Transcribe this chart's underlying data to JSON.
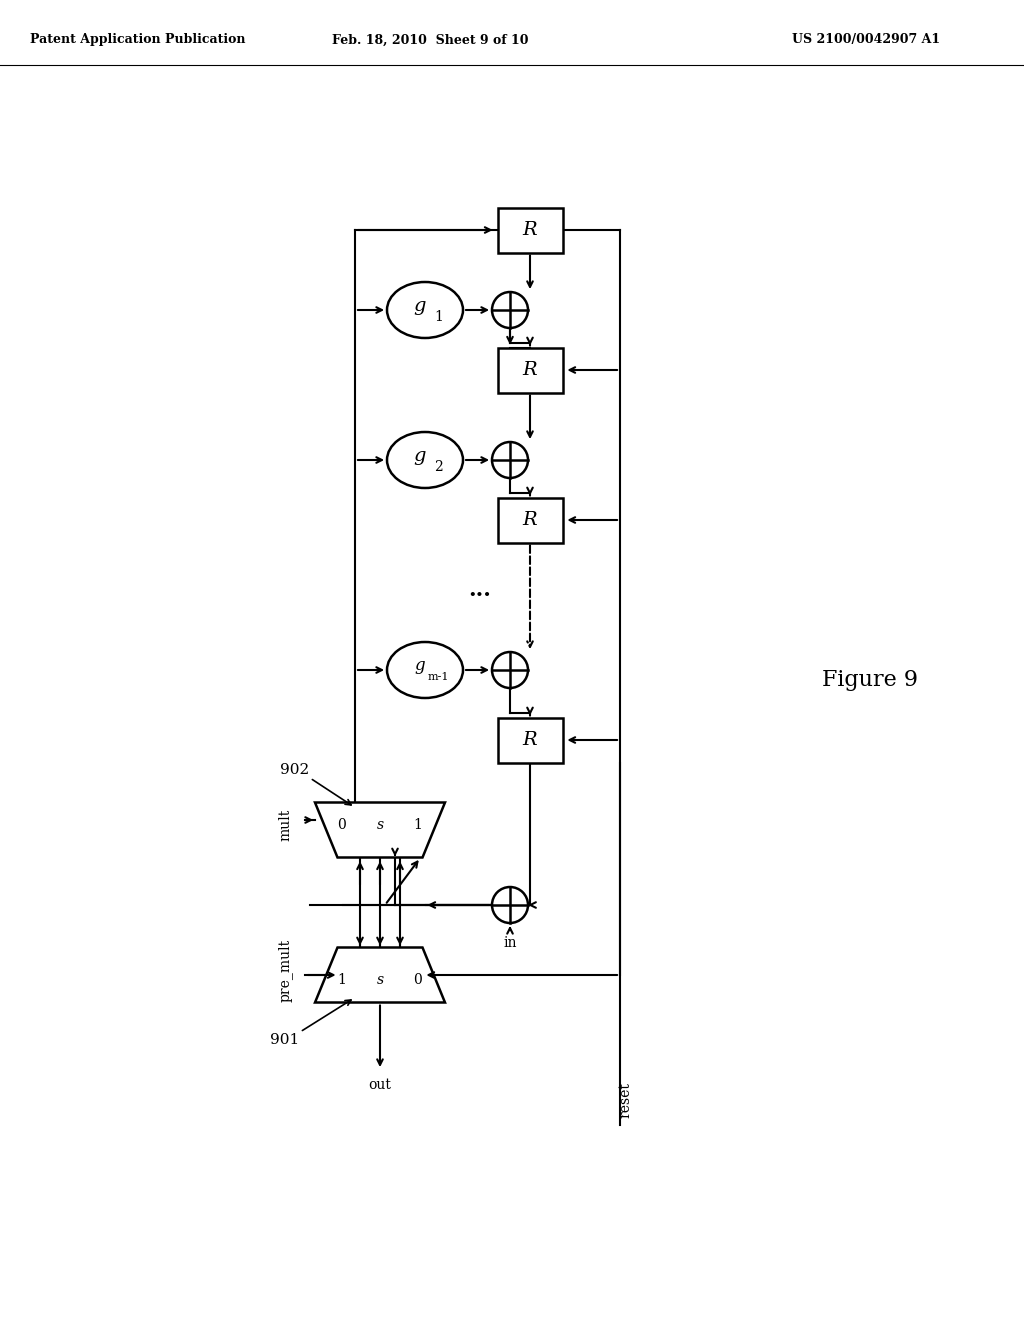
{
  "title_left": "Patent Application Publication",
  "title_mid": "Feb. 18, 2010  Sheet 9 of 10",
  "title_right": "US 2100/0042907 A1",
  "figure_label": "Figure 9",
  "background": "#ffffff",
  "line_color": "#000000"
}
